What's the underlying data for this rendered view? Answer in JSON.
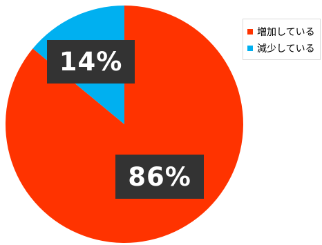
{
  "chart_data": {
    "type": "pie",
    "title": "",
    "categories": [
      "増加している",
      "減少している"
    ],
    "values": [
      86,
      14
    ],
    "data_labels": [
      "86%",
      "14%"
    ],
    "colors": [
      "#ff3300",
      "#00b0f0"
    ],
    "label_bg_color": "#333333",
    "legend_position": "top-right"
  }
}
